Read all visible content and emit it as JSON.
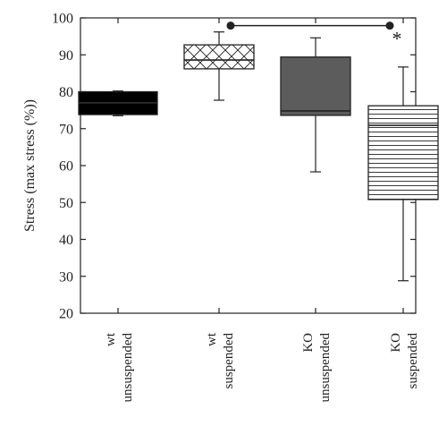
{
  "chart_data": {
    "type": "box",
    "ylabel": "Stress (max stress (%))",
    "ylim": [
      20,
      100
    ],
    "yticks": [
      20,
      30,
      40,
      50,
      60,
      70,
      80,
      90,
      100
    ],
    "categories": [
      [
        "wt",
        "unsuspended"
      ],
      [
        "wt",
        "suspended"
      ],
      [
        "KO",
        "unsuspended"
      ],
      [
        "KO",
        "suspended"
      ]
    ],
    "boxes": [
      {
        "min": 73.5,
        "q1": 73.8,
        "median": 77.0,
        "q3": 80.0,
        "max": 80.2,
        "fill": "solid-black"
      },
      {
        "min": 77.7,
        "q1": 86.2,
        "median": 88.6,
        "q3": 92.7,
        "max": 96.2,
        "fill": "crosshatch"
      },
      {
        "min": 58.3,
        "q1": 73.6,
        "median": 74.8,
        "q3": 89.4,
        "max": 94.6,
        "fill": "solid-gray"
      },
      {
        "min": 28.8,
        "q1": 50.8,
        "median": 70.9,
        "q3": 76.2,
        "max": 86.7,
        "fill": "horizontal-lines"
      }
    ],
    "significance": {
      "from_category": 1,
      "to_category": 3,
      "y": 97.9,
      "label": "*"
    }
  },
  "colors": {
    "axis": "#222222",
    "black_fill": "#000000",
    "gray_fill": "#5c5c5c",
    "pattern_line": "#222222",
    "background": "#ffffff"
  }
}
